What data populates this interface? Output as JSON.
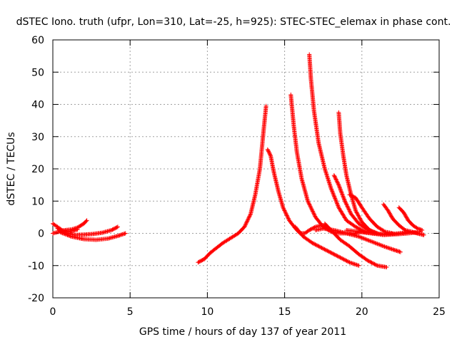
{
  "chart_data": {
    "type": "scatter",
    "title": "dSTEC Iono. truth (ufpr, Lon=310, Lat=-25, h=925): STEC-STEC_elemax in phase cont.",
    "xlabel": "GPS time / hours of day 137 of year 2011",
    "ylabel": "dSTEC  / TECUs",
    "xlim": [
      0,
      25
    ],
    "ylim": [
      -20,
      60
    ],
    "xticks": [
      0,
      5,
      10,
      15,
      20,
      25
    ],
    "yticks": [
      -20,
      -10,
      0,
      10,
      20,
      30,
      40,
      50,
      60
    ],
    "grid": true,
    "marker": "+",
    "color": "#ff0000",
    "series": [
      {
        "x": [
          0.0,
          0.3,
          0.6,
          1.0,
          1.3,
          1.6
        ],
        "y": [
          3.0,
          2.0,
          1.0,
          0.5,
          0.8,
          1.2
        ]
      },
      {
        "x": [
          0.0,
          0.4,
          0.8,
          1.2,
          1.6,
          2.0,
          2.2
        ],
        "y": [
          0.0,
          0.5,
          1.0,
          1.2,
          1.8,
          3.0,
          4.0
        ]
      },
      {
        "x": [
          0.3,
          0.8,
          1.4,
          2.0,
          2.6,
          3.2,
          3.8,
          4.2
        ],
        "y": [
          1.5,
          0.2,
          -0.5,
          -0.4,
          -0.2,
          0.2,
          1.0,
          2.0
        ]
      },
      {
        "x": [
          0.5,
          1.2,
          2.0,
          2.8,
          3.6,
          4.2,
          4.7
        ],
        "y": [
          0.3,
          -1.0,
          -1.8,
          -2.0,
          -1.6,
          -0.8,
          0.0
        ]
      },
      {
        "x": [
          9.4,
          9.8,
          10.2,
          10.6,
          11.0,
          11.5,
          12.0,
          12.4,
          12.8,
          13.1,
          13.4,
          13.6,
          13.8
        ],
        "y": [
          -9.0,
          -8.0,
          -6.0,
          -4.5,
          -3.0,
          -1.5,
          0.0,
          2.0,
          6.0,
          12.0,
          20.0,
          30.0,
          39.5
        ]
      },
      {
        "x": [
          13.9,
          14.1,
          14.3,
          14.6,
          14.9,
          15.3,
          15.7,
          16.0,
          16.3,
          16.6,
          17.0,
          17.4,
          17.8
        ],
        "y": [
          26.0,
          24.0,
          19.0,
          13.0,
          8.0,
          4.0,
          1.5,
          0.0,
          0.0,
          1.0,
          2.0,
          2.5,
          2.0
        ]
      },
      {
        "x": [
          15.4,
          15.6,
          15.8,
          16.1,
          16.5,
          17.0,
          17.5,
          18.0,
          18.5,
          19.0,
          19.5,
          20.0
        ],
        "y": [
          43.0,
          33.0,
          25.0,
          17.0,
          10.0,
          5.0,
          2.0,
          0.5,
          0.0,
          0.0,
          0.0,
          0.5
        ]
      },
      {
        "x": [
          15.7,
          16.2,
          16.8,
          17.4,
          18.0,
          18.6,
          19.2,
          19.8
        ],
        "y": [
          2.0,
          -1.0,
          -3.0,
          -4.5,
          -6.0,
          -7.5,
          -9.0,
          -10.0
        ]
      },
      {
        "x": [
          16.6,
          16.7,
          16.9,
          17.2,
          17.6,
          18.0,
          18.5,
          19.0,
          19.6,
          20.2
        ],
        "y": [
          55.5,
          48.0,
          38.0,
          28.0,
          20.0,
          14.0,
          8.0,
          4.0,
          2.0,
          0.5
        ]
      },
      {
        "x": [
          17.6,
          18.0,
          18.6,
          19.2,
          19.8,
          20.4,
          21.0,
          21.6
        ],
        "y": [
          3.0,
          1.0,
          -2.0,
          -4.0,
          -6.5,
          -8.5,
          -10.0,
          -10.5
        ]
      },
      {
        "x": [
          18.5,
          18.6,
          18.8,
          19.0,
          19.3,
          19.6,
          20.0,
          20.5,
          21.0
        ],
        "y": [
          37.5,
          31.0,
          24.0,
          18.0,
          12.0,
          7.0,
          3.5,
          1.0,
          0.0
        ]
      },
      {
        "x": [
          18.2,
          18.5,
          18.9,
          19.3,
          19.8,
          20.4,
          21.0
        ],
        "y": [
          18.0,
          15.0,
          10.0,
          6.0,
          3.0,
          1.0,
          0.0
        ]
      },
      {
        "x": [
          17.0,
          17.5,
          18.2,
          19.0,
          19.8,
          20.6,
          21.4,
          22.0,
          22.5
        ],
        "y": [
          1.0,
          1.5,
          1.0,
          0.0,
          -1.0,
          -2.5,
          -4.0,
          -5.0,
          -5.8
        ]
      },
      {
        "x": [
          19.2,
          19.6,
          20.0,
          20.5,
          21.0,
          21.5,
          22.0
        ],
        "y": [
          12.0,
          11.0,
          8.0,
          4.5,
          2.0,
          0.5,
          0.0
        ]
      },
      {
        "x": [
          21.4,
          21.7,
          22.0,
          22.4,
          22.8,
          23.2,
          23.6,
          24.0
        ],
        "y": [
          9.0,
          7.0,
          4.5,
          2.5,
          1.0,
          0.5,
          0.0,
          -0.5
        ]
      },
      {
        "x": [
          22.4,
          22.7,
          23.0,
          23.3,
          23.6,
          23.9
        ],
        "y": [
          8.0,
          6.5,
          4.0,
          2.5,
          1.5,
          1.0
        ]
      },
      {
        "x": [
          20.0,
          20.8,
          21.6,
          22.4,
          23.2,
          24.0
        ],
        "y": [
          0.5,
          0.0,
          -0.3,
          0.0,
          0.5,
          -0.5
        ]
      },
      {
        "x": [
          19.0,
          19.8,
          20.6,
          21.4,
          22.2,
          23.0,
          23.8
        ],
        "y": [
          1.0,
          0.5,
          0.0,
          -0.5,
          -0.3,
          0.0,
          0.5
        ]
      }
    ]
  }
}
